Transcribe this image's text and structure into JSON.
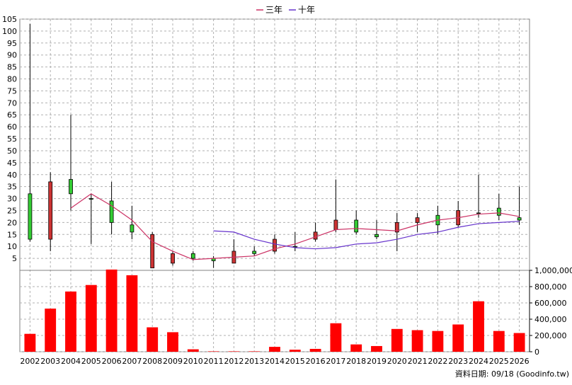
{
  "chart_data": {
    "type": "candlestick+bar",
    "legend": [
      {
        "name": "三年",
        "color": "#cc3366"
      },
      {
        "name": "十年",
        "color": "#6633cc"
      }
    ],
    "x_labels": [
      "2002",
      "2003",
      "2004",
      "2005",
      "2006",
      "2007",
      "2008",
      "2009",
      "2010",
      "2011",
      "2012",
      "2013",
      "2014",
      "2015",
      "2016",
      "2017",
      "2018",
      "2019",
      "2020",
      "2021",
      "2022",
      "2023",
      "2024",
      "2025",
      "2026"
    ],
    "price_axis": {
      "min": 0,
      "max": 105,
      "ticks": [
        5,
        10,
        15,
        20,
        25,
        30,
        35,
        40,
        45,
        50,
        55,
        60,
        65,
        70,
        75,
        80,
        85,
        90,
        95,
        100,
        105
      ]
    },
    "volume_axis": {
      "min": 0,
      "max": 1000000,
      "ticks": [
        0,
        200000,
        400000,
        600000,
        800000,
        1000000
      ],
      "tick_labels": [
        "0",
        "200,000",
        "400,000",
        "600,000",
        "800,000",
        "1,000,000"
      ]
    },
    "candles": [
      {
        "year": "2002",
        "open": 13,
        "close": 32,
        "high": 103,
        "low": 12
      },
      {
        "year": "2003",
        "open": 37,
        "close": 13,
        "high": 41,
        "low": 8
      },
      {
        "year": "2004",
        "open": 32,
        "close": 38,
        "high": 65,
        "low": 25
      },
      {
        "year": "2005",
        "open": 30,
        "close": 30,
        "high": 32,
        "low": 11
      },
      {
        "year": "2006",
        "open": 20,
        "close": 29,
        "high": 37,
        "low": 15
      },
      {
        "year": "2007",
        "open": 16,
        "close": 19,
        "high": 27,
        "low": 13
      },
      {
        "year": "2008",
        "open": 15,
        "close": 1,
        "high": 16,
        "low": 1
      },
      {
        "year": "2009",
        "open": 7,
        "close": 3,
        "high": 8,
        "low": 2
      },
      {
        "year": "2010",
        "open": 5,
        "close": 7,
        "high": 8,
        "low": 4
      },
      {
        "year": "2011",
        "open": 4,
        "close": 5,
        "high": 6,
        "low": 1
      },
      {
        "year": "2012",
        "open": 8,
        "close": 3,
        "high": 13,
        "low": 3
      },
      {
        "year": "2013",
        "open": 7,
        "close": 8,
        "high": 10,
        "low": 6
      },
      {
        "year": "2014",
        "open": 13,
        "close": 8,
        "high": 15,
        "low": 7
      },
      {
        "year": "2015",
        "open": 10,
        "close": 10,
        "high": 16,
        "low": 8
      },
      {
        "year": "2016",
        "open": 16,
        "close": 13,
        "high": 20,
        "low": 12
      },
      {
        "year": "2017",
        "open": 21,
        "close": 17,
        "high": 38,
        "low": 16
      },
      {
        "year": "2018",
        "open": 16,
        "close": 21,
        "high": 25,
        "low": 15
      },
      {
        "year": "2019",
        "open": 14,
        "close": 15,
        "high": 21,
        "low": 13
      },
      {
        "year": "2020",
        "open": 20,
        "close": 16,
        "high": 24,
        "low": 8
      },
      {
        "year": "2021",
        "open": 22,
        "close": 20,
        "high": 24,
        "low": 16
      },
      {
        "year": "2022",
        "open": 19,
        "close": 23,
        "high": 27,
        "low": 15
      },
      {
        "year": "2023",
        "open": 25,
        "close": 19,
        "high": 29,
        "low": 18
      },
      {
        "year": "2024",
        "open": 24,
        "close": 24,
        "high": 40,
        "low": 22
      },
      {
        "year": "2025",
        "open": 23,
        "close": 26,
        "high": 32,
        "low": 21
      },
      {
        "year": "2026",
        "open": 21,
        "close": 22,
        "high": 35,
        "low": 19
      }
    ],
    "ma3": [
      {
        "year": "2004",
        "value": 26
      },
      {
        "year": "2005",
        "value": 32
      },
      {
        "year": "2006",
        "value": 27
      },
      {
        "year": "2007",
        "value": 21
      },
      {
        "year": "2008",
        "value": 12
      },
      {
        "year": "2009",
        "value": 8
      },
      {
        "year": "2010",
        "value": 4.5
      },
      {
        "year": "2011",
        "value": 5
      },
      {
        "year": "2012",
        "value": 5.5
      },
      {
        "year": "2013",
        "value": 6
      },
      {
        "year": "2014",
        "value": 9
      },
      {
        "year": "2015",
        "value": 11
      },
      {
        "year": "2016",
        "value": 14
      },
      {
        "year": "2017",
        "value": 17
      },
      {
        "year": "2018",
        "value": 17.5
      },
      {
        "year": "2019",
        "value": 17
      },
      {
        "year": "2020",
        "value": 16.5
      },
      {
        "year": "2021",
        "value": 19
      },
      {
        "year": "2022",
        "value": 21
      },
      {
        "year": "2023",
        "value": 22
      },
      {
        "year": "2024",
        "value": 23.5
      },
      {
        "year": "2025",
        "value": 24
      },
      {
        "year": "2026",
        "value": 22.5
      }
    ],
    "ma10": [
      {
        "year": "2011",
        "value": 16.5
      },
      {
        "year": "2012",
        "value": 16
      },
      {
        "year": "2013",
        "value": 13
      },
      {
        "year": "2014",
        "value": 11
      },
      {
        "year": "2015",
        "value": 9.5
      },
      {
        "year": "2016",
        "value": 9
      },
      {
        "year": "2017",
        "value": 9.5
      },
      {
        "year": "2018",
        "value": 11
      },
      {
        "year": "2019",
        "value": 11.5
      },
      {
        "year": "2020",
        "value": 13
      },
      {
        "year": "2021",
        "value": 15
      },
      {
        "year": "2022",
        "value": 16
      },
      {
        "year": "2023",
        "value": 18
      },
      {
        "year": "2024",
        "value": 19.5
      },
      {
        "year": "2025",
        "value": 20
      },
      {
        "year": "2026",
        "value": 20.5
      }
    ],
    "volumes": [
      {
        "year": "2002",
        "value": 220000
      },
      {
        "year": "2003",
        "value": 530000
      },
      {
        "year": "2004",
        "value": 740000
      },
      {
        "year": "2005",
        "value": 820000
      },
      {
        "year": "2006",
        "value": 1010000
      },
      {
        "year": "2007",
        "value": 940000
      },
      {
        "year": "2008",
        "value": 300000
      },
      {
        "year": "2009",
        "value": 240000
      },
      {
        "year": "2010",
        "value": 30000
      },
      {
        "year": "2011",
        "value": 5000
      },
      {
        "year": "2012",
        "value": 5000
      },
      {
        "year": "2013",
        "value": 5000
      },
      {
        "year": "2014",
        "value": 60000
      },
      {
        "year": "2015",
        "value": 25000
      },
      {
        "year": "2016",
        "value": 35000
      },
      {
        "year": "2017",
        "value": 350000
      },
      {
        "year": "2018",
        "value": 90000
      },
      {
        "year": "2019",
        "value": 70000
      },
      {
        "year": "2020",
        "value": 280000
      },
      {
        "year": "2021",
        "value": 265000
      },
      {
        "year": "2022",
        "value": 255000
      },
      {
        "year": "2023",
        "value": 335000
      },
      {
        "year": "2024",
        "value": 620000
      },
      {
        "year": "2025",
        "value": 255000
      },
      {
        "year": "2026",
        "value": 230000
      }
    ],
    "colors": {
      "up": "#33cc33",
      "down": "#cc3333",
      "volume": "#ff0000",
      "grid": "#b0b0b0",
      "wick": "#000000"
    },
    "grid": true
  },
  "footer": {
    "source_text": "資料日期: 09/18 (Goodinfo.tw)"
  }
}
